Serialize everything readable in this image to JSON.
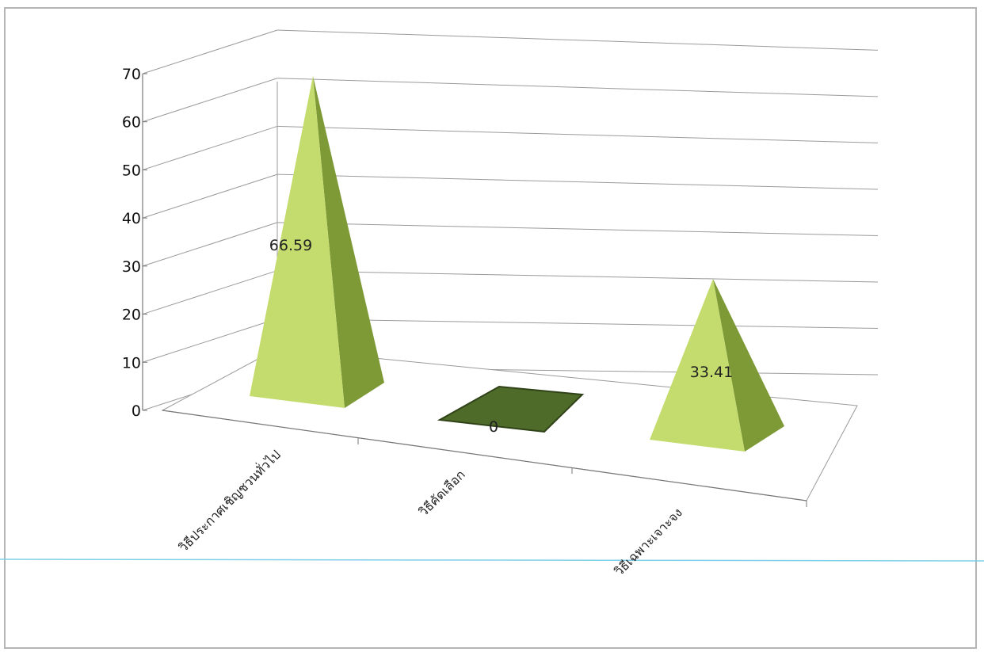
{
  "chart_data": {
    "type": "bar",
    "bar_shape": "pyramid",
    "three_d": true,
    "categories": [
      "วิธีประกาศเชิญชวนทั่วไป",
      "วิธีคัดเลือก",
      "วิธีเฉพาะเจาะจง"
    ],
    "values": [
      66.59,
      0,
      33.41
    ],
    "data_labels": [
      "66.59",
      "0",
      "33.41"
    ],
    "y_ticks": [
      "0",
      "10",
      "20",
      "30",
      "40",
      "50",
      "60",
      "70"
    ],
    "ylim": [
      0,
      70
    ],
    "grid": true,
    "legend": "none",
    "colors": {
      "front": "#c4dc6e",
      "side": "#7e9a37",
      "side_dark": "#6f8a2e",
      "zero_bar": "#4f6b2a",
      "zero_bar_edge": "#2f4218",
      "grid": "#9a9a9a",
      "axis": "#777777",
      "frame": "#b5b5b5",
      "page_rule": "#7fd0e8"
    }
  }
}
